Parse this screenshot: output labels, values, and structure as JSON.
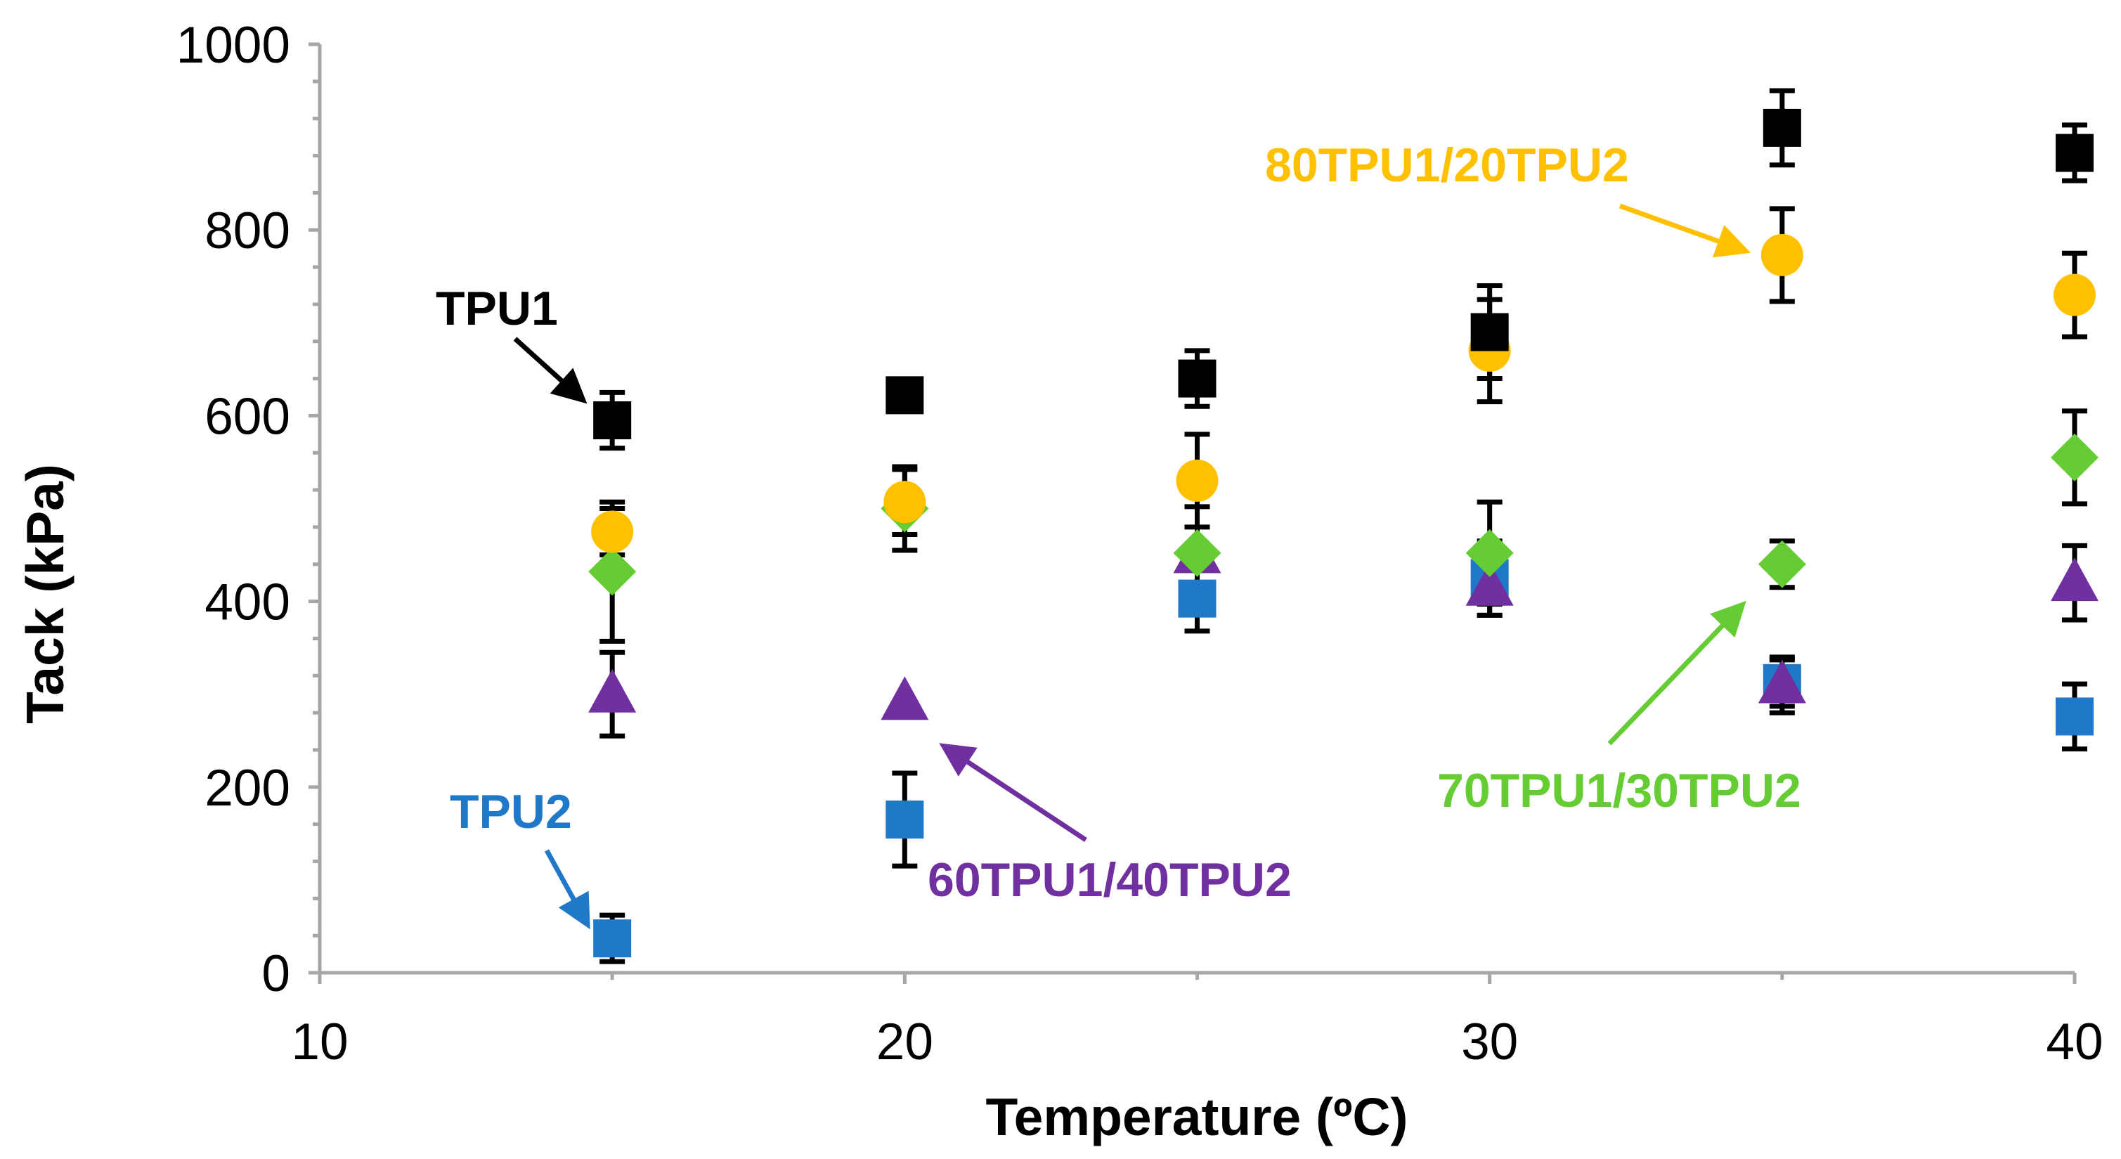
{
  "chart_data": {
    "type": "scatter",
    "title": "",
    "xlabel": "Temperature (ºC)",
    "ylabel": "Tack (kPa)",
    "xlim": [
      10,
      40
    ],
    "ylim": [
      0,
      1000
    ],
    "xticks": [
      10,
      20,
      30,
      40
    ],
    "yticks": [
      0,
      200,
      400,
      600,
      800,
      1000
    ],
    "x": [
      15,
      20,
      25,
      30,
      35,
      40
    ],
    "series": [
      {
        "name": "TPU1",
        "marker": "square",
        "color": "#000000",
        "x": [
          15,
          20,
          25,
          30,
          35,
          40
        ],
        "values": [
          595,
          622,
          640,
          690,
          910,
          883
        ],
        "err": [
          30,
          0,
          30,
          50,
          40,
          30
        ]
      },
      {
        "name": "80TPU1/20TPU2",
        "marker": "circle",
        "color": "#FFC000",
        "x": [
          15,
          20,
          25,
          30,
          35,
          40
        ],
        "values": [
          475,
          507,
          530,
          670,
          773,
          730
        ],
        "err": [
          25,
          35,
          50,
          55,
          50,
          45
        ]
      },
      {
        "name": "70TPU1/30TPU2",
        "marker": "diamond",
        "color": "#66CC33",
        "x": [
          15,
          20,
          25,
          30,
          35,
          40
        ],
        "values": [
          432,
          500,
          452,
          452,
          440,
          555
        ],
        "err": [
          75,
          45,
          50,
          55,
          25,
          50
        ]
      },
      {
        "name": "60TPU1/40TPU2",
        "marker": "triangle",
        "color": "#7030A0",
        "x": [
          15,
          20,
          25,
          30,
          35,
          40
        ],
        "values": [
          300,
          292,
          450,
          415,
          310,
          420
        ],
        "err": [
          45,
          0,
          0,
          30,
          30,
          40
        ]
      },
      {
        "name": "TPU2",
        "marker": "square",
        "color": "#1F78C8",
        "x": [
          15,
          20,
          25,
          30,
          35,
          40
        ],
        "values": [
          37,
          165,
          403,
          425,
          312,
          276
        ],
        "err": [
          25,
          50,
          35,
          40,
          25,
          35
        ]
      }
    ],
    "annotations": [
      {
        "text": "TPU1",
        "color": "#000000",
        "series": 0
      },
      {
        "text": "80TPU1/20TPU2",
        "color": "#FFC000",
        "series": 1
      },
      {
        "text": "70TPU1/30TPU2",
        "color": "#66CC33",
        "series": 2
      },
      {
        "text": "60TPU1/40TPU2",
        "color": "#7030A0",
        "series": 3
      },
      {
        "text": "TPU2",
        "color": "#1F78C8",
        "series": 4
      }
    ],
    "grid": false,
    "legend": "none"
  }
}
